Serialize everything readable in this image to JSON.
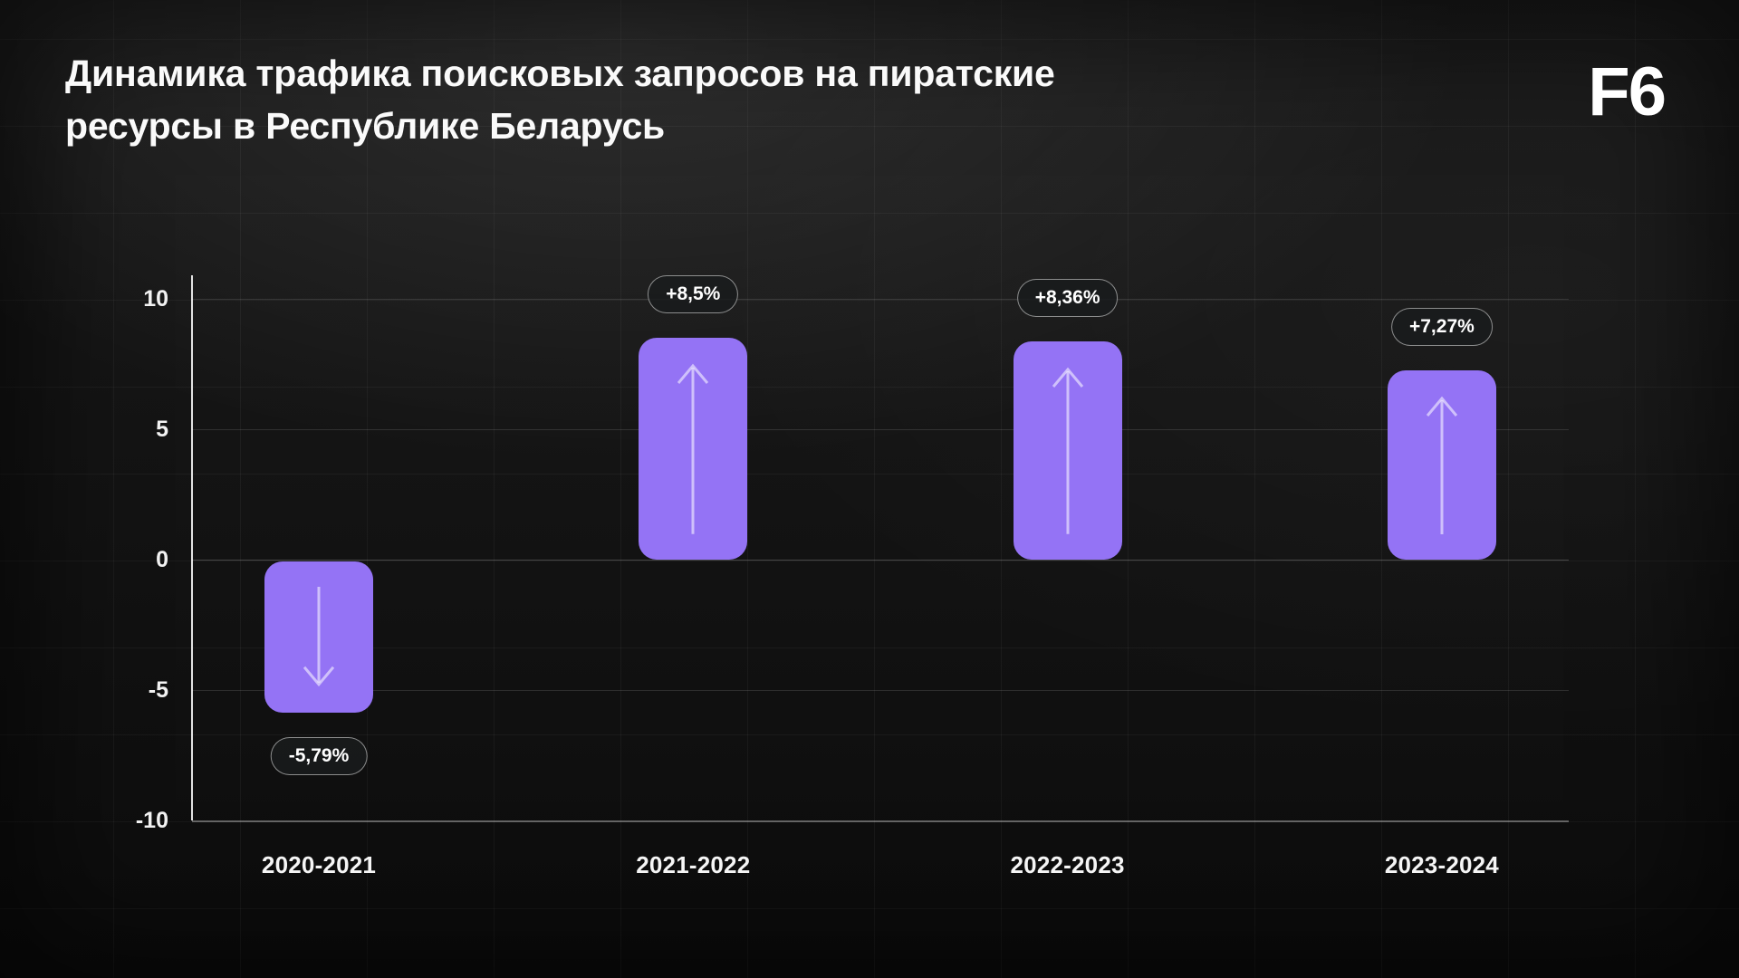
{
  "header": {
    "title_lines": [
      "Динамика трафика поисковых запросов на пиратские",
      "ресурсы в Республике Беларусь"
    ],
    "logo": "F6"
  },
  "chart_data": {
    "type": "bar",
    "title": "Динамика трафика поисковых запросов на пиратские ресурсы в Республике Беларусь",
    "categories": [
      "2020-2021",
      "2021-2022",
      "2022-2023",
      "2023-2024"
    ],
    "values": [
      -5.79,
      8.5,
      8.36,
      7.27
    ],
    "value_labels": [
      "-5,79%",
      "+8,5%",
      "+8,36%",
      "+7,27%"
    ],
    "unit": "%",
    "y_ticks": [
      10,
      5,
      0,
      -5,
      -10
    ],
    "ylim": [
      -10,
      10
    ],
    "grid": true,
    "legend": false,
    "bar_color": "#9473F5",
    "arrow_color": "rgba(255,255,255,0.55)",
    "badge_border_color": "rgba(255,255,255,0.5)",
    "badge_background": "rgba(25,27,29,0.88)",
    "axis_text_color": "#F2F2F2"
  }
}
